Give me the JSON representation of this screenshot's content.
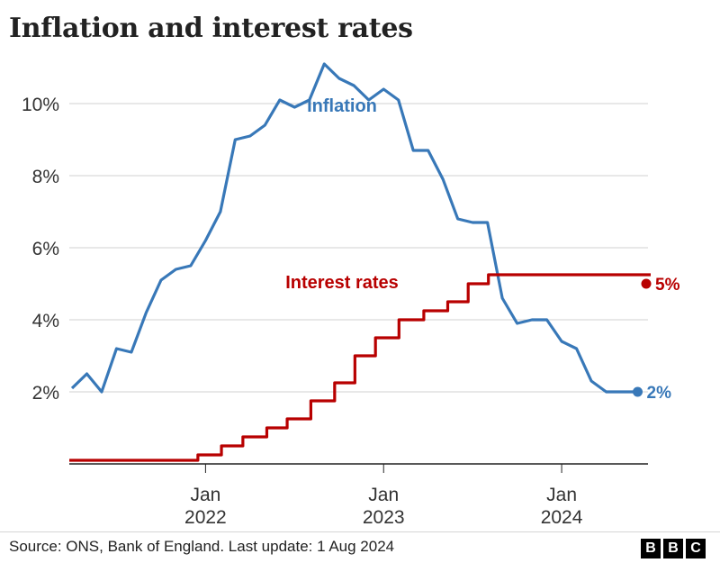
{
  "title": "Inflation and interest rates",
  "source": "Source: ONS, Bank of England. Last update: 1 Aug 2024",
  "logo": [
    "B",
    "B",
    "C"
  ],
  "colors": {
    "inflation": "#3878b8",
    "interest": "#b80000",
    "grid": "#d0d0d0",
    "axis": "#222222"
  },
  "chart_data": {
    "type": "line",
    "title": "Inflation and interest rates",
    "ylim": [
      0,
      11.5
    ],
    "y_ticks": [
      2,
      4,
      6,
      8,
      10
    ],
    "y_tick_labels": [
      "2%",
      "4%",
      "6%",
      "8%",
      "10%"
    ],
    "x_ticks": [
      {
        "line1": "Jan",
        "line2": "2022",
        "date": "2022-01"
      },
      {
        "line1": "Jan",
        "line2": "2023",
        "date": "2023-01"
      },
      {
        "line1": "Jan",
        "line2": "2024",
        "date": "2024-01"
      }
    ],
    "x_range": [
      "2021-04",
      "2024-07"
    ],
    "grid": "horizontal",
    "series": [
      {
        "name": "Inflation",
        "color": "#3878b8",
        "shape": "line",
        "end_label": "2%",
        "x": [
          "2021-04",
          "2021-05",
          "2021-06",
          "2021-07",
          "2021-08",
          "2021-09",
          "2021-10",
          "2021-11",
          "2021-12",
          "2022-01",
          "2022-02",
          "2022-03",
          "2022-04",
          "2022-05",
          "2022-06",
          "2022-07",
          "2022-08",
          "2022-09",
          "2022-10",
          "2022-11",
          "2022-12",
          "2023-01",
          "2023-02",
          "2023-03",
          "2023-04",
          "2023-05",
          "2023-06",
          "2023-07",
          "2023-08",
          "2023-09",
          "2023-10",
          "2023-11",
          "2023-12",
          "2024-01",
          "2024-02",
          "2024-03",
          "2024-04",
          "2024-05",
          "2024-06"
        ],
        "values": [
          2.1,
          2.5,
          2.0,
          3.2,
          3.1,
          4.2,
          5.1,
          5.4,
          5.5,
          6.2,
          7.0,
          9.0,
          9.1,
          9.4,
          10.1,
          9.9,
          10.1,
          11.1,
          10.7,
          10.5,
          10.1,
          10.4,
          10.1,
          8.7,
          8.7,
          7.9,
          6.8,
          6.7,
          6.7,
          4.6,
          3.9,
          4.0,
          4.0,
          3.4,
          3.2,
          2.3,
          2.0,
          2.0,
          2.0
        ]
      },
      {
        "name": "Interest rates",
        "color": "#b80000",
        "shape": "step",
        "end_label": "5%",
        "x": [
          "2021-04",
          "2021-12-16",
          "2022-02-03",
          "2022-03-17",
          "2022-05-05",
          "2022-06-16",
          "2022-08-04",
          "2022-09-22",
          "2022-11-03",
          "2022-12-15",
          "2023-02-02",
          "2023-03-23",
          "2023-05-11",
          "2023-06-22",
          "2023-08-03",
          "2024-07"
        ],
        "values": [
          0.1,
          0.25,
          0.5,
          0.75,
          1.0,
          1.25,
          1.75,
          2.25,
          3.0,
          3.5,
          4.0,
          4.25,
          4.5,
          5.0,
          5.25,
          5.25
        ]
      }
    ]
  }
}
